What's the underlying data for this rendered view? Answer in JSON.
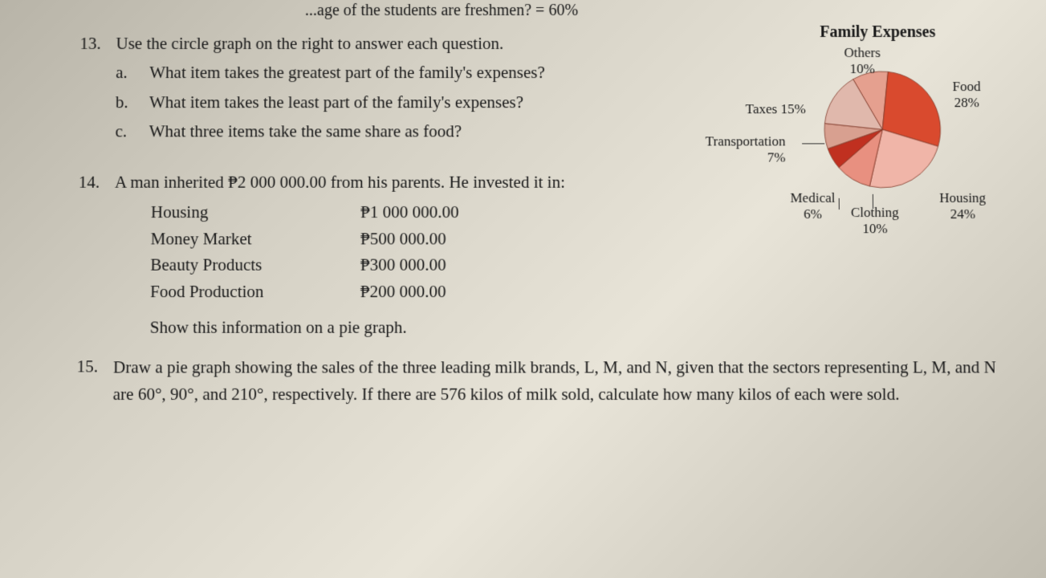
{
  "top_fragment": "...age of the students are freshmen? = 60%",
  "q13": {
    "num": "13.",
    "text": "Use the circle graph on the right to answer each question.",
    "a_letter": "a.",
    "a_text": "What item takes the greatest part of the family's expenses?",
    "b_letter": "b.",
    "b_text": "What item takes the least part of the family's expenses?",
    "c_letter": "c.",
    "c_text": "What three items take the same share as food?"
  },
  "chart": {
    "title": "Family Expenses",
    "type": "pie",
    "slices": [
      {
        "label": "Others",
        "pct": "10%",
        "value": 10,
        "color": "#e5a08f"
      },
      {
        "label": "Food",
        "pct": "28%",
        "suffix": " 28%",
        "value": 28,
        "color": "#d94a2e"
      },
      {
        "label": "Housing",
        "pct": "24%",
        "value": 24,
        "color": "#f0b5a8"
      },
      {
        "label": "Clothing",
        "pct": "10%",
        "value": 10,
        "color": "#e89080"
      },
      {
        "label": "Medical",
        "pct": "6%",
        "value": 6,
        "color": "#c03020"
      },
      {
        "label": "Transportation",
        "pct": "7%",
        "value": 7,
        "color": "#d8a090"
      },
      {
        "label": "Taxes",
        "pct": "15%",
        "suffix": " 15%",
        "value": 15,
        "color": "#e0b8ac"
      }
    ],
    "border_color": "#7a3020",
    "label_fontsize": 17,
    "title_fontsize": 20,
    "labels": {
      "others": "Others",
      "others_pct": "10%",
      "food": "Food 28%",
      "housing": "Housing",
      "housing_pct": "24%",
      "clothing": "Clothing",
      "clothing_pct": "10%",
      "medical": "Medical",
      "medical_pct": "6%",
      "transportation": "Transportation",
      "transportation_pct": "7%",
      "taxes": "Taxes 15%"
    }
  },
  "q14": {
    "num": "14.",
    "text": "A man inherited ₱2 000 000.00 from his parents. He invested it in:",
    "rows": [
      {
        "name": "Housing",
        "value": "₱1 000 000.00"
      },
      {
        "name": "Money Market",
        "value": "₱500 000.00"
      },
      {
        "name": "Beauty Products",
        "value": "₱300 000.00"
      },
      {
        "name": "Food Production",
        "value": "₱200 000.00"
      }
    ],
    "instruction": "Show this information on a pie graph."
  },
  "q15": {
    "num": "15.",
    "text": "Draw a pie graph showing the sales of the three leading milk brands, L, M, and N, given that the sectors representing L, M, and N are 60°, 90°, and 210°, respectively. If there are 576 kilos of milk sold, calculate how many kilos of each were sold."
  }
}
